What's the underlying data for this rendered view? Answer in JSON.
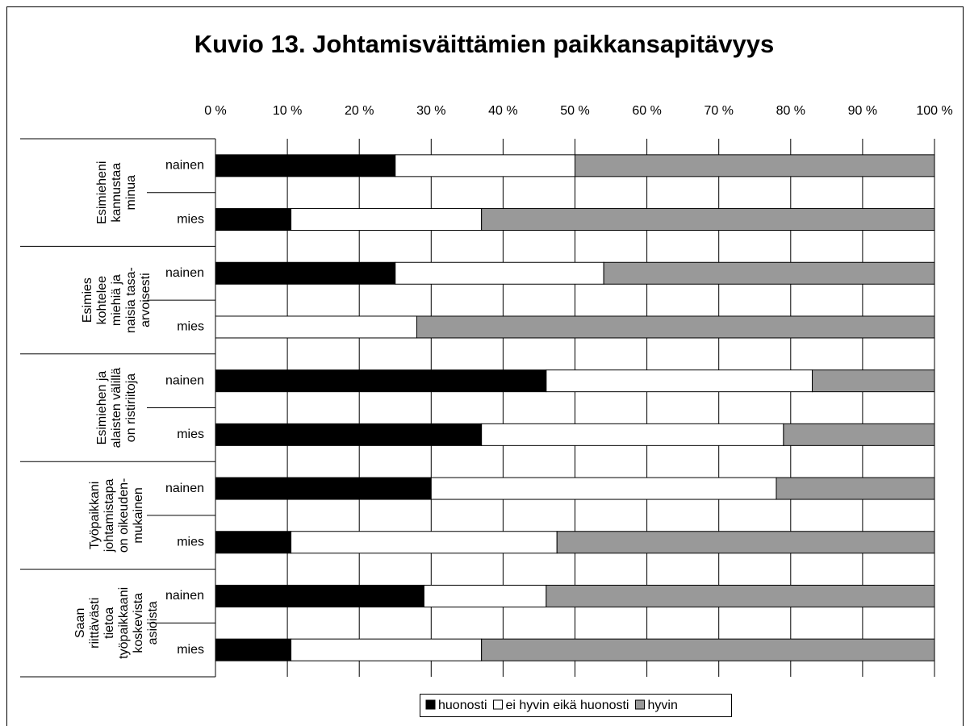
{
  "chart_data": {
    "type": "bar",
    "orientation": "horizontal",
    "stacked": true,
    "title": "Kuvio 13. Johtamisväittämien paikkansapitävyys",
    "groups": [
      [
        "Esimieheni",
        "kannustaa",
        "minua"
      ],
      [
        "Esimies",
        "kohtelee",
        "miehiä ja",
        "naisia tasa-",
        "arvoisesti"
      ],
      [
        "Esimiehen ja",
        "alaisten välillä",
        "on ristiriitoja"
      ],
      [
        "Työpaikkani",
        "johtamistapa",
        "on oikeuden-",
        "mukainen"
      ],
      [
        "Saan",
        "riittävästi",
        "tietoa",
        "työpaikkaani",
        "koskevista",
        "asioista"
      ]
    ],
    "categories": [
      "nainen",
      "mies",
      "nainen",
      "mies",
      "nainen",
      "mies",
      "nainen",
      "mies",
      "nainen",
      "mies"
    ],
    "series": [
      {
        "name": "huonosti",
        "color": "#000000",
        "values": [
          25,
          10.5,
          25,
          0,
          46,
          37,
          30,
          10.5,
          29,
          10.5
        ]
      },
      {
        "name": "ei hyvin eikä huonosti",
        "color": "#ffffff",
        "values": [
          25,
          26.5,
          29,
          28,
          37,
          42,
          48,
          37,
          17,
          26.5
        ]
      },
      {
        "name": "hyvin",
        "color": "#999999",
        "values": [
          50,
          63,
          46,
          72,
          17,
          21,
          22,
          52.5,
          54,
          63
        ]
      }
    ],
    "xlim": [
      0,
      100
    ],
    "xticks": [
      {
        "value": 0,
        "label": "0 %"
      },
      {
        "value": 10,
        "label": "10 %"
      },
      {
        "value": 20,
        "label": "20 %"
      },
      {
        "value": 30,
        "label": "30 %"
      },
      {
        "value": 40,
        "label": "40 %"
      },
      {
        "value": 50,
        "label": "50 %"
      },
      {
        "value": 60,
        "label": "60 %"
      },
      {
        "value": 70,
        "label": "70 %"
      },
      {
        "value": 80,
        "label": "80 %"
      },
      {
        "value": 90,
        "label": "90 %"
      },
      {
        "value": 100,
        "label": "100 %"
      }
    ],
    "grid": true,
    "legend": "bottom"
  }
}
